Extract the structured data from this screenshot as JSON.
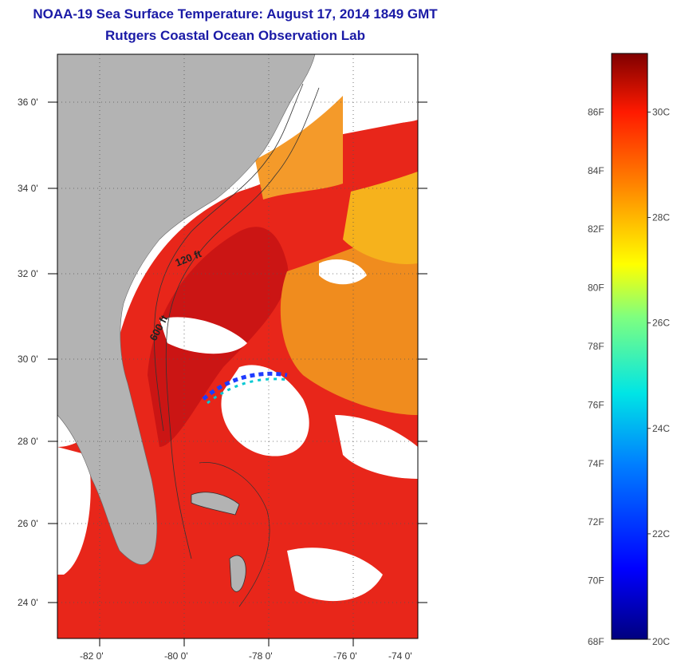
{
  "header": {
    "title": "NOAA-19 Sea Surface Temperature:  August 17, 2014 1849 GMT",
    "subtitle": "Rutgers Coastal Ocean Observation Lab"
  },
  "map": {
    "lat_labels": [
      "36 0'",
      "34 0'",
      "32 0'",
      "30 0'",
      "28 0'",
      "26 0'",
      "24 0'"
    ],
    "lon_labels": [
      "-82 0'",
      "-80 0'",
      "-78 0'",
      "-76 0'",
      "-74 0'"
    ],
    "depth_labels": [
      "120 ft",
      "600 ft"
    ],
    "colors": {
      "land": "#b3b3b3",
      "cloud": "#ffffff",
      "warm": "#e8261a",
      "hot": "#c81414",
      "orange": "#f08c1e"
    }
  },
  "colorbar": {
    "fahrenheit": [
      "86F",
      "84F",
      "82F",
      "80F",
      "78F",
      "76F",
      "74F",
      "72F",
      "70F",
      "68F"
    ],
    "celsius": [
      "30C",
      "28C",
      "26C",
      "24C",
      "22C",
      "20C"
    ],
    "range_f": [
      68,
      88
    ]
  }
}
